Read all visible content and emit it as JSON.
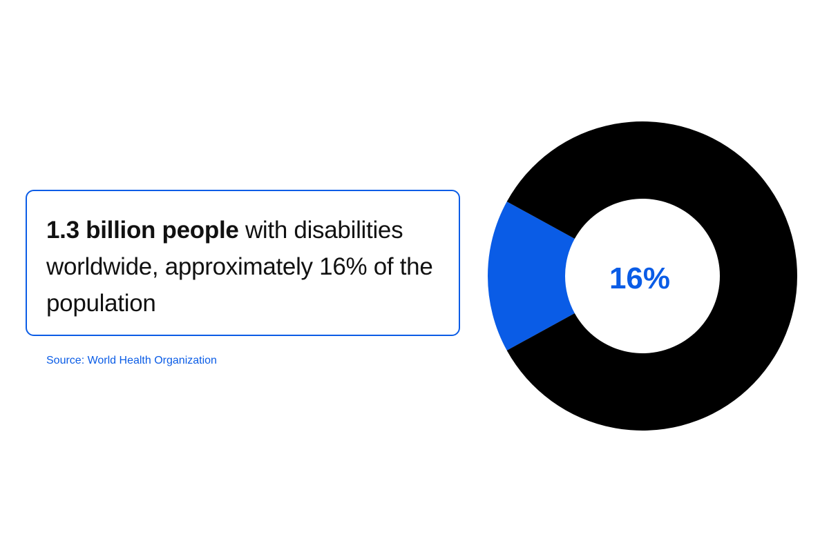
{
  "stat": {
    "bold": "1.3 billion people",
    "rest": " with disabilities worldwide, approximately 16% of the population"
  },
  "source": "Source: World Health Organization",
  "colors": {
    "accent": "#0a5ce6",
    "remainder": "#000000",
    "text": "#111111"
  },
  "chart_data": {
    "type": "pie",
    "donut": true,
    "categories": [
      "",
      ""
    ],
    "values": [
      16,
      84
    ],
    "colors": [
      "#0a5ce6",
      "#000000"
    ],
    "center_label": "16%",
    "title": "",
    "legend": "none"
  }
}
